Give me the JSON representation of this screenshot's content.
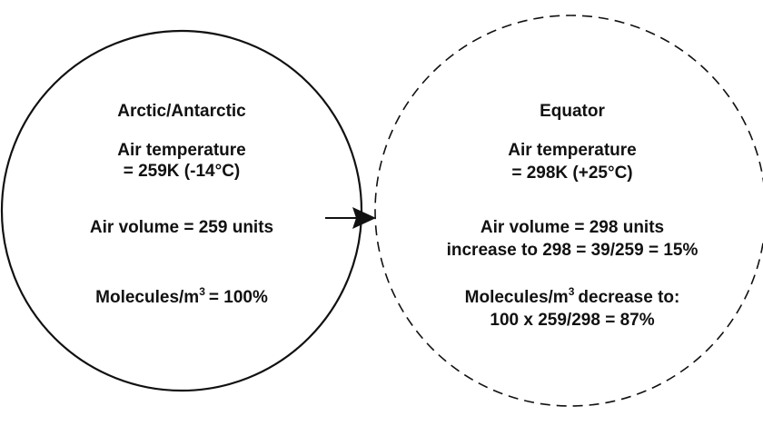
{
  "left": {
    "title": "Arctic/Antarctic",
    "temp_label": "Air temperature",
    "temp_value": "= 259K (-14°C)",
    "volume": "Air volume = 259 units",
    "molecules": [
      "Molecules/m",
      "3",
      "= 100%"
    ]
  },
  "right": {
    "title": "Equator",
    "temp_label": "Air temperature",
    "temp_value": "= 298K (+25°C)",
    "volume": "Air volume = 298 units",
    "increase": "increase to 298 = 39/259 = 15%",
    "molecules": [
      "Molecules/m",
      "3",
      "decrease to:"
    ],
    "result": "100 x 259/298 = 87%"
  }
}
